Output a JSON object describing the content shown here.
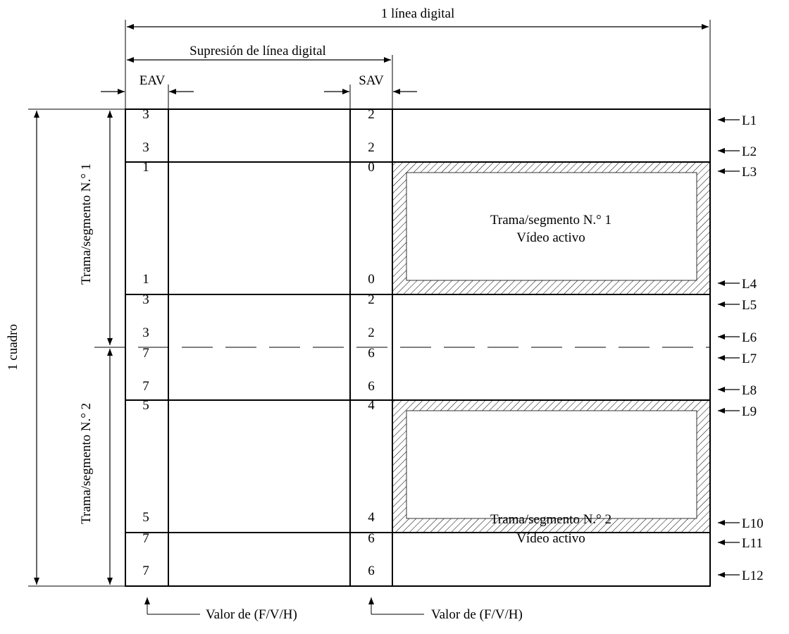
{
  "title_line": "1 línea digital",
  "blanking": "Supresión de línea digital",
  "eav": "EAV",
  "sav": "SAV",
  "frame": "1 cuadro",
  "field1_side": "Trama/segmento N.° 1",
  "field2_side": "Trama/segmento N.° 2",
  "active1": {
    "line1": "Trama/segmento N.° 1",
    "line2": "Vídeo activo"
  },
  "active2": {
    "line1": "Trama/segmento N.° 2",
    "line2": "Vídeo activo"
  },
  "fvh_label_eav": "Valor de (F/V/H)",
  "fvh_label_sav": "Valor de (F/V/H)",
  "rows": [
    {
      "eav": "3",
      "sav": "2",
      "line": "L1"
    },
    {
      "eav": "3",
      "sav": "2",
      "line": "L2"
    },
    {
      "eav": "1",
      "sav": "0",
      "line": "L3"
    },
    {
      "eav": "1",
      "sav": "0",
      "line": "L4"
    },
    {
      "eav": "3",
      "sav": "2",
      "line": "L5"
    },
    {
      "eav": "3",
      "sav": "2",
      "line": "L6"
    },
    {
      "eav": "7",
      "sav": "6",
      "line": "L7"
    },
    {
      "eav": "7",
      "sav": "6",
      "line": "L8"
    },
    {
      "eav": "5",
      "sav": "4",
      "line": "L9"
    },
    {
      "eav": "5",
      "sav": "4",
      "line": "L10"
    },
    {
      "eav": "7",
      "sav": "6",
      "line": "L11"
    },
    {
      "eav": "7",
      "sav": "6",
      "line": "L12"
    }
  ]
}
